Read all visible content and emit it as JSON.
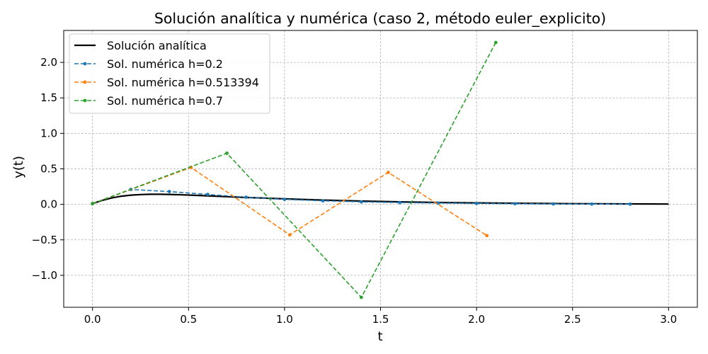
{
  "chart_data": {
    "type": "line",
    "title": "Solución analítica y numérica (caso 2, método euler_explicito)",
    "xlabel": "t",
    "ylabel": "y(t)",
    "xlim": [
      -0.15,
      3.15
    ],
    "ylim": [
      -1.45,
      2.45
    ],
    "xticks": [
      0.0,
      0.5,
      1.0,
      1.5,
      2.0,
      2.5,
      3.0
    ],
    "xtick_labels": [
      "0.0",
      "0.5",
      "1.0",
      "1.5",
      "2.0",
      "2.5",
      "3.0"
    ],
    "yticks": [
      -1.0,
      -0.5,
      0.0,
      0.5,
      1.0,
      1.5,
      2.0
    ],
    "ytick_labels": [
      "−1.0",
      "−0.5",
      "0.0",
      "0.5",
      "1.0",
      "1.5",
      "2.0"
    ],
    "grid": true,
    "legend_position": "top-left",
    "series": [
      {
        "name": "Solución analítica",
        "color": "#000000",
        "style": "solid",
        "x": [
          0.0,
          0.05,
          0.1,
          0.15,
          0.2,
          0.25,
          0.3,
          0.35,
          0.4,
          0.45,
          0.5,
          0.6,
          0.7,
          0.8,
          0.9,
          1.0,
          1.2,
          1.4,
          1.6,
          1.8,
          2.0,
          2.25,
          2.5,
          2.75,
          3.0
        ],
        "y": [
          0.01,
          0.055,
          0.09,
          0.115,
          0.13,
          0.138,
          0.142,
          0.142,
          0.14,
          0.136,
          0.131,
          0.12,
          0.108,
          0.097,
          0.087,
          0.077,
          0.06,
          0.046,
          0.035,
          0.026,
          0.02,
          0.014,
          0.009,
          0.006,
          0.004
        ]
      },
      {
        "name": "Sol. numérica h=0.2",
        "color": "#1f77b4",
        "style": "dashed",
        "x": [
          0.0,
          0.2,
          0.4,
          0.6,
          0.8,
          1.0,
          1.2,
          1.4,
          1.6,
          1.8,
          2.0,
          2.2,
          2.4,
          2.6,
          2.8
        ],
        "y": [
          0.01,
          0.21,
          0.18,
          0.14,
          0.1,
          0.07,
          0.05,
          0.035,
          0.025,
          0.018,
          0.013,
          0.009,
          0.006,
          0.004,
          0.003
        ]
      },
      {
        "name": "Sol. numérica h=0.513394",
        "color": "#ff7f0e",
        "style": "dashed",
        "x": [
          0.0,
          0.513394,
          1.026788,
          1.540182,
          2.053576
        ],
        "y": [
          0.01,
          0.52,
          -0.43,
          0.45,
          -0.44
        ]
      },
      {
        "name": "Sol. numérica h=0.7",
        "color": "#2ca02c",
        "style": "dashed",
        "x": [
          0.0,
          0.7,
          1.4,
          2.1
        ],
        "y": [
          0.01,
          0.72,
          -1.31,
          2.28
        ]
      }
    ]
  }
}
